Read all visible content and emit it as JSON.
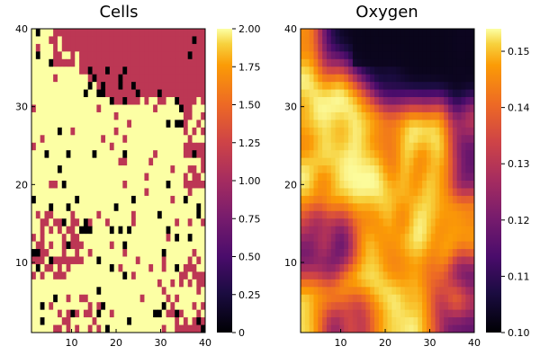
{
  "chart_data": [
    {
      "type": "heatmap",
      "title": "Cells",
      "x_range": [
        1,
        40
      ],
      "y_range": [
        1,
        40
      ],
      "x_ticks": [
        10,
        20,
        30,
        40
      ],
      "y_ticks": [
        10,
        20,
        30,
        40
      ],
      "colorbar": {
        "range": [
          0,
          2
        ],
        "ticks": [
          "0",
          "0.25",
          "0.50",
          "0.75",
          "1.00",
          "1.25",
          "1.50",
          "1.75",
          "2.00"
        ],
        "colormap": "inferno"
      },
      "values_description": "cell state per grid point: 0 (black), 1 (magenta), 2 (pale yellow)",
      "colors": {
        "empty": "#000004",
        "state1": "#bc3754",
        "state2": "#fcffa4"
      }
    },
    {
      "type": "heatmap",
      "title": "Oxygen",
      "x_range": [
        1,
        40
      ],
      "y_range": [
        1,
        40
      ],
      "x_ticks": [
        10,
        20,
        30,
        40
      ],
      "y_ticks": [
        10,
        20,
        30,
        40
      ],
      "colorbar": {
        "range": [
          0.1,
          0.154
        ],
        "ticks": [
          "0.10",
          "0.11",
          "0.12",
          "0.13",
          "0.14",
          "0.15"
        ],
        "colormap": "inferno"
      }
    }
  ]
}
